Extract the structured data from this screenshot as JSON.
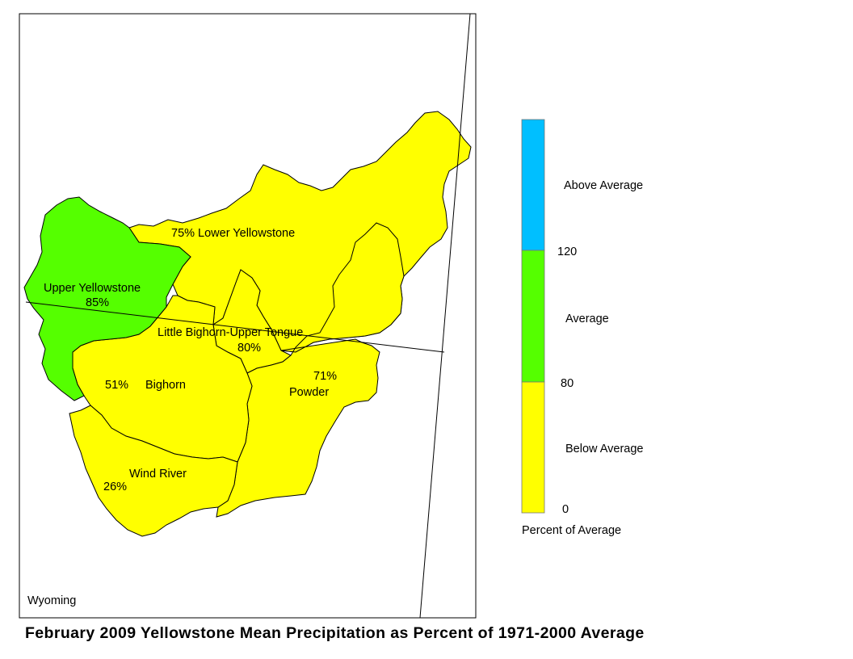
{
  "title": "February 2009 Yellowstone Mean Precipitation as Percent of 1971-2000 Average",
  "state_label": "Wyoming",
  "colors": {
    "above_average": "#00BFFF",
    "average": "#55FF00",
    "below_average": "#FFFF00",
    "outline": "#000000"
  },
  "basins": [
    {
      "name": "Upper Yellowstone",
      "percent": 85,
      "label_name": "Upper Yellowstone",
      "label_value": "85%",
      "category": "average"
    },
    {
      "name": "Lower Yellowstone",
      "percent": 75,
      "label": "75% Lower Yellowstone",
      "category": "below_average"
    },
    {
      "name": "Little Bighorn-Upper Tongue",
      "percent": 80,
      "label_name": "Little Bighorn-Upper Tongue",
      "label_value": "80%",
      "category": "below_average"
    },
    {
      "name": "Bighorn",
      "percent": 51,
      "label_name": "Bighorn",
      "label_value": "51%",
      "category": "below_average"
    },
    {
      "name": "Powder",
      "percent": 71,
      "label_name": "Powder",
      "label_value": "71%",
      "category": "below_average"
    },
    {
      "name": "Wind River",
      "percent": 26,
      "label_name": "Wind River",
      "label_value": "26%",
      "category": "below_average"
    }
  ],
  "legend": {
    "title": "Percent of Average",
    "ticks": [
      "0",
      "80",
      "120"
    ],
    "categories": [
      {
        "label": "Above Average",
        "color": "#00BFFF"
      },
      {
        "label": "Average",
        "color": "#55FF00"
      },
      {
        "label": "Below Average",
        "color": "#FFFF00"
      }
    ]
  }
}
